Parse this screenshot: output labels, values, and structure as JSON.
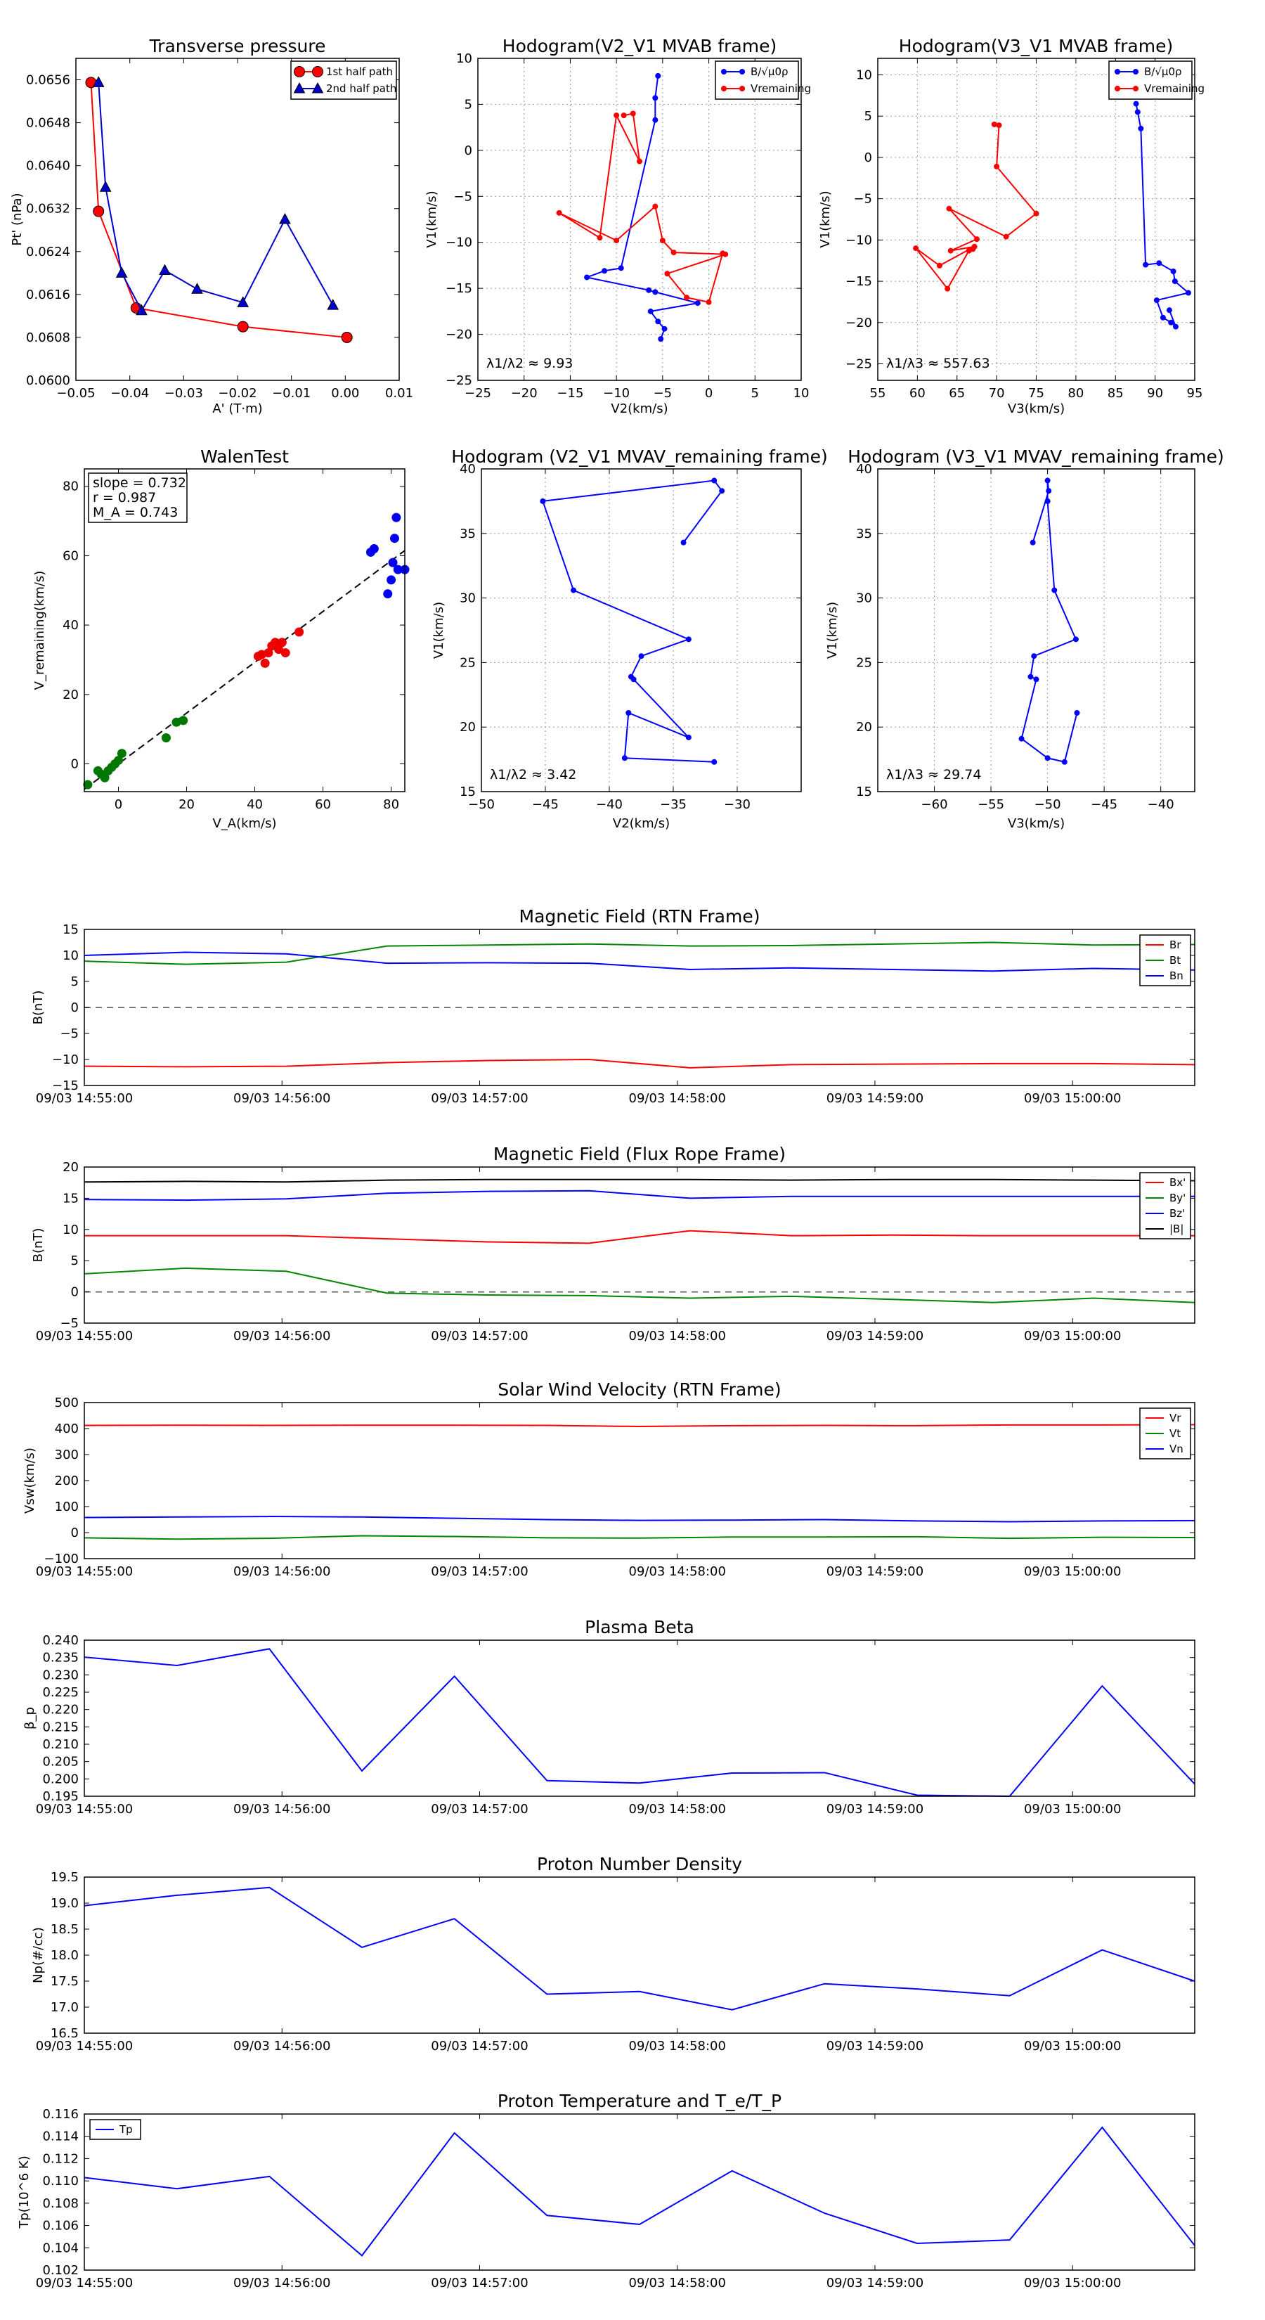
{
  "chart_data": [
    {
      "id": "pt",
      "type": "line",
      "title": "Transverse pressure",
      "xlabel": "A' (T·m)",
      "ylabel": "Pt' (nPa)",
      "xlim": [
        -0.05,
        0.01
      ],
      "ylim": [
        0.06,
        0.066
      ],
      "xticks": [
        -0.05,
        -0.04,
        -0.03,
        -0.02,
        -0.01,
        0.0,
        0.01
      ],
      "xtick_labels": [
        "−0.05",
        "−0.04",
        "−0.03",
        "−0.02",
        "−0.01",
        "0.00",
        "0.01"
      ],
      "yticks": [
        0.06,
        0.0608,
        0.0616,
        0.0624,
        0.0632,
        0.064,
        0.0648,
        0.0656
      ],
      "ytick_labels": [
        "0.0600",
        "0.0608",
        "0.0616",
        "0.0624",
        "0.0632",
        "0.0640",
        "0.0648",
        "0.0656"
      ],
      "grid": false,
      "legend_position": "top-right",
      "series": [
        {
          "name": "1st half path",
          "color": "#ff0000",
          "marker": "circle",
          "x": [
            -0.0472,
            -0.0458,
            -0.0388,
            -0.019,
            0.0003
          ],
          "y": [
            0.06555,
            0.06315,
            0.06135,
            0.061,
            0.0608
          ]
        },
        {
          "name": "2nd half path",
          "color": "#0000cc",
          "marker": "triangle",
          "x": [
            -0.0458,
            -0.0445,
            -0.0415,
            -0.0378,
            -0.0335,
            -0.0275,
            -0.019,
            -0.0112,
            -0.0023
          ],
          "y": [
            0.06555,
            0.0636,
            0.062,
            0.0613,
            0.06205,
            0.0617,
            0.06145,
            0.063,
            0.0614
          ]
        }
      ]
    },
    {
      "id": "h21",
      "type": "line",
      "title": "Hodogram(V2_V1 MVAB frame)",
      "xlabel": "V2(km/s)",
      "ylabel": "V1(km/s)",
      "xlim": [
        -25,
        10
      ],
      "ylim": [
        -25,
        10
      ],
      "xticks": [
        -25,
        -20,
        -15,
        -10,
        -5,
        0,
        5,
        10
      ],
      "xtick_labels": [
        "−25",
        "−20",
        "−15",
        "−10",
        "−5",
        "0",
        "5",
        "10"
      ],
      "yticks": [
        -25,
        -20,
        -15,
        -10,
        -5,
        0,
        5,
        10
      ],
      "ytick_labels": [
        "−25",
        "−20",
        "−15",
        "−10",
        "−5",
        "0",
        "5",
        "10"
      ],
      "grid": true,
      "legend_position": "top-right",
      "annotation": "λ1/λ2 ≈ 9.93",
      "series": [
        {
          "name": "B/√μ0ρ",
          "color": "#0000ff",
          "marker": "dot",
          "x": [
            -5.5,
            -5.8,
            -5.8,
            -9.5,
            -11.3,
            -13.2,
            -6.5,
            -5.8,
            -1.2,
            -6.3,
            -5.5,
            -4.8,
            -5.2
          ],
          "y": [
            8.1,
            5.7,
            3.3,
            -12.8,
            -13.1,
            -13.8,
            -15.2,
            -15.4,
            -16.6,
            -17.5,
            -18.6,
            -19.4,
            -20.5
          ]
        },
        {
          "name": "Vremaining",
          "color": "#ff0000",
          "marker": "dot",
          "x": [
            -9.2,
            -8.2,
            -7.5,
            -10.0,
            -11.8,
            -16.2,
            -10.0,
            -5.8,
            -5.0,
            -3.8,
            1.8,
            -4.5,
            -2.4,
            0.0,
            1.5
          ],
          "y": [
            3.8,
            4.0,
            -1.2,
            3.8,
            -9.5,
            -6.8,
            -9.8,
            -6.1,
            -9.8,
            -11.1,
            -11.3,
            -13.4,
            -16.0,
            -16.5,
            -11.2
          ]
        }
      ]
    },
    {
      "id": "h31",
      "type": "line",
      "title": "Hodogram(V3_V1 MVAB frame)",
      "xlabel": "V3(km/s)",
      "ylabel": "V1(km/s)",
      "xlim": [
        55,
        95
      ],
      "ylim": [
        -27,
        12
      ],
      "xticks": [
        55,
        60,
        65,
        70,
        75,
        80,
        85,
        90,
        95
      ],
      "xtick_labels": [
        "55",
        "60",
        "65",
        "70",
        "75",
        "80",
        "85",
        "90",
        "95"
      ],
      "yticks": [
        -25,
        -20,
        -15,
        -10,
        -5,
        0,
        5,
        10
      ],
      "ytick_labels": [
        "−25",
        "−20",
        "−15",
        "−10",
        "−5",
        "0",
        "5",
        "10"
      ],
      "grid": true,
      "legend_position": "top-right",
      "annotation": "λ1/λ3 ≈ 557.63",
      "series": [
        {
          "name": "B/√μ0ρ",
          "color": "#0000ff",
          "marker": "dot",
          "x": [
            87.6,
            87.8,
            88.2,
            88.8,
            90.5,
            92.3,
            92.5,
            94.2,
            90.2,
            91.0,
            92.0,
            92.6,
            91.8
          ],
          "y": [
            6.5,
            5.5,
            3.5,
            -13.0,
            -12.8,
            -13.8,
            -15.0,
            -16.4,
            -17.3,
            -19.4,
            -20.0,
            -20.5,
            -18.5
          ]
        },
        {
          "name": "Vremaining",
          "color": "#ff0000",
          "marker": "dot",
          "x": [
            69.7,
            70.3,
            70.0,
            75.0,
            71.2,
            64.0,
            67.5,
            64.2,
            67.2,
            62.8,
            59.8,
            63.8,
            66.5,
            67.0
          ],
          "y": [
            4.0,
            3.9,
            -1.1,
            -6.8,
            -9.6,
            -6.2,
            -9.9,
            -11.3,
            -10.8,
            -13.1,
            -11.0,
            -15.9,
            -11.3,
            -11.1
          ]
        }
      ]
    },
    {
      "id": "walen",
      "type": "scatter",
      "title": "WalenTest",
      "xlabel": "V_A(km/s)",
      "ylabel": "V_remaining(km/s)",
      "xlim": [
        -10,
        84
      ],
      "ylim": [
        -8,
        85
      ],
      "xticks": [
        0,
        20,
        40,
        60,
        80
      ],
      "xtick_labels": [
        "0",
        "20",
        "40",
        "60",
        "80"
      ],
      "yticks": [
        0,
        20,
        40,
        60,
        80
      ],
      "ytick_labels": [
        "0",
        "20",
        "40",
        "60",
        "80"
      ],
      "grid": false,
      "stats": [
        "slope = 0.732",
        "r = 0.987",
        "M_A = 0.743"
      ],
      "fit_line": {
        "slope": 0.732,
        "intercept": 0
      },
      "series": [
        {
          "name": "green",
          "color": "#007700",
          "x": [
            -9,
            -6,
            -5,
            -4,
            -3,
            -2,
            -1,
            0,
            1,
            14,
            17,
            19
          ],
          "y": [
            -6,
            -2,
            -3,
            -4,
            -2,
            -1,
            0,
            1,
            3,
            7.5,
            12,
            12.5
          ]
        },
        {
          "name": "red",
          "color": "#ee0000",
          "x": [
            41,
            42,
            43,
            44,
            45,
            46,
            47,
            48,
            49,
            53
          ],
          "y": [
            31,
            31.5,
            29,
            32,
            34,
            35,
            33,
            35,
            32,
            38
          ]
        },
        {
          "name": "blue",
          "color": "#0000ee",
          "x": [
            74,
            75,
            79,
            80,
            80.5,
            81,
            81.5,
            82,
            84
          ],
          "y": [
            61,
            62,
            49,
            53,
            58,
            65,
            71,
            56,
            56
          ]
        }
      ]
    },
    {
      "id": "h21r",
      "type": "line",
      "title": "Hodogram (V2_V1 MVAV_remaining frame)",
      "xlabel": "V2(km/s)",
      "ylabel": "V1(km/s)",
      "xlim": [
        -50,
        -25
      ],
      "ylim": [
        15,
        40
      ],
      "xticks": [
        -50,
        -45,
        -40,
        -35,
        -30
      ],
      "xtick_labels": [
        "−50",
        "−45",
        "−40",
        "−35",
        "−30"
      ],
      "yticks": [
        15,
        20,
        25,
        30,
        35,
        40
      ],
      "ytick_labels": [
        "15",
        "20",
        "25",
        "30",
        "35",
        "40"
      ],
      "grid": true,
      "annotation": "λ1/λ2 ≈ 3.42",
      "series": [
        {
          "name": "B",
          "color": "#0000ff",
          "marker": "dot",
          "x": [
            -34.2,
            -31.2,
            -31.8,
            -45.2,
            -42.8,
            -33.8,
            -37.5,
            -38.3,
            -38.1,
            -33.8,
            -38.5,
            -38.8,
            -31.8
          ],
          "y": [
            34.3,
            38.3,
            39.1,
            37.5,
            30.6,
            26.8,
            25.5,
            23.9,
            23.7,
            19.2,
            21.1,
            17.6,
            17.3
          ]
        }
      ]
    },
    {
      "id": "h31r",
      "type": "line",
      "title": "Hodogram (V3_V1 MVAV_remaining frame)",
      "xlabel": "V3(km/s)",
      "ylabel": "V1(km/s)",
      "xlim": [
        -65,
        -37
      ],
      "ylim": [
        15,
        40
      ],
      "xticks": [
        -60,
        -55,
        -50,
        -45,
        -40
      ],
      "xtick_labels": [
        "−60",
        "−55",
        "−50",
        "−45",
        "−40"
      ],
      "yticks": [
        15,
        20,
        25,
        30,
        35,
        40
      ],
      "ytick_labels": [
        "15",
        "20",
        "25",
        "30",
        "35",
        "40"
      ],
      "grid": true,
      "annotation": "λ1/λ3 ≈ 29.74",
      "series": [
        {
          "name": "B",
          "color": "#0000ff",
          "marker": "dot",
          "x": [
            -51.3,
            -49.9,
            -50.0,
            -50.0,
            -49.4,
            -47.5,
            -51.2,
            -51.5,
            -51.0,
            -52.3,
            -50.0,
            -48.5,
            -47.4
          ],
          "y": [
            34.3,
            38.3,
            39.1,
            37.5,
            30.6,
            26.8,
            25.5,
            23.9,
            23.7,
            19.1,
            17.6,
            17.3,
            21.1
          ]
        }
      ]
    },
    {
      "id": "brtn",
      "type": "line",
      "title": "Magnetic Field (RTN Frame)",
      "ylabel": "B(nT)",
      "ylim": [
        -15,
        15
      ],
      "yticks": [
        -15,
        -10,
        -5,
        0,
        5,
        10,
        15
      ],
      "ytick_labels": [
        "−15",
        "−10",
        "−5",
        "0",
        "5",
        "10",
        "15"
      ],
      "dashed_zero": true,
      "legend_position": "top-right",
      "series": [
        {
          "name": "Br",
          "color": "#ff0000",
          "values": [
            -11.3,
            -11.4,
            -11.3,
            -10.6,
            -10.2,
            -10.0,
            -11.6,
            -11.0,
            -10.9,
            -10.8,
            -10.8,
            -11.0
          ]
        },
        {
          "name": "Bt",
          "color": "#008800",
          "values": [
            8.9,
            8.3,
            8.7,
            11.8,
            12.0,
            12.2,
            11.8,
            11.9,
            12.2,
            12.5,
            12.0,
            12.1
          ]
        },
        {
          "name": "Bn",
          "color": "#0000ff",
          "values": [
            10.0,
            10.6,
            10.3,
            8.5,
            8.6,
            8.5,
            7.3,
            7.6,
            7.3,
            7.0,
            7.5,
            7.2
          ]
        }
      ]
    },
    {
      "id": "bfr",
      "type": "line",
      "title": "Magnetic Field (Flux Rope Frame)",
      "ylabel": "B(nT)",
      "ylim": [
        -5,
        20
      ],
      "yticks": [
        -5,
        0,
        5,
        10,
        15,
        20
      ],
      "ytick_labels": [
        "−5",
        "0",
        "5",
        "10",
        "15",
        "20"
      ],
      "dashed_zero": true,
      "legend_position": "top-right",
      "series": [
        {
          "name": "Bx'",
          "color": "#ff0000",
          "values": [
            9.0,
            9.0,
            9.0,
            8.5,
            8.0,
            7.8,
            9.8,
            9.0,
            9.1,
            9.0,
            9.0,
            9.0
          ]
        },
        {
          "name": "By'",
          "color": "#008800",
          "values": [
            2.9,
            3.8,
            3.3,
            -0.2,
            -0.5,
            -0.6,
            -1.0,
            -0.7,
            -1.2,
            -1.7,
            -1.0,
            -1.7
          ]
        },
        {
          "name": "Bz'",
          "color": "#0000ff",
          "values": [
            14.8,
            14.7,
            14.9,
            15.8,
            16.1,
            16.2,
            15.0,
            15.3,
            15.3,
            15.3,
            15.3,
            15.3
          ]
        },
        {
          "name": "|B|",
          "color": "#000000",
          "values": [
            17.6,
            17.7,
            17.6,
            17.9,
            18.0,
            18.0,
            18.0,
            17.9,
            18.0,
            18.0,
            17.9,
            17.8
          ]
        }
      ]
    },
    {
      "id": "vsw",
      "type": "line",
      "title": "Solar Wind Velocity (RTN Frame)",
      "ylabel": "Vsw(km/s)",
      "ylim": [
        -100,
        500
      ],
      "yticks": [
        -100,
        0,
        100,
        200,
        300,
        400,
        500
      ],
      "ytick_labels": [
        "−100",
        "0",
        "100",
        "200",
        "300",
        "400",
        "500"
      ],
      "dashed_zero": false,
      "legend_position": "top-right",
      "series": [
        {
          "name": "Vr",
          "color": "#ff0000",
          "values": [
            412,
            413,
            412,
            413,
            413,
            412,
            408,
            411,
            412,
            411,
            414,
            414,
            415
          ]
        },
        {
          "name": "Vt",
          "color": "#008800",
          "values": [
            -20,
            -25,
            -22,
            -12,
            -15,
            -20,
            -21,
            -17,
            -17,
            -16,
            -22,
            -18,
            -19
          ]
        },
        {
          "name": "Vn",
          "color": "#0000ff",
          "values": [
            58,
            60,
            62,
            60,
            55,
            50,
            47,
            48,
            50,
            45,
            42,
            45,
            46
          ]
        }
      ]
    },
    {
      "id": "beta",
      "type": "line",
      "title": "Plasma Beta",
      "ylabel": "β_p",
      "ylim": [
        0.195,
        0.24
      ],
      "yticks": [
        0.195,
        0.2,
        0.205,
        0.21,
        0.215,
        0.22,
        0.225,
        0.23,
        0.235,
        0.24
      ],
      "ytick_labels": [
        "0.195",
        "0.200",
        "0.205",
        "0.210",
        "0.215",
        "0.220",
        "0.225",
        "0.230",
        "0.235",
        "0.240"
      ],
      "series": [
        {
          "name": "beta",
          "color": "#0000ff",
          "values": [
            0.2351,
            0.2327,
            0.2375,
            0.2023,
            0.2296,
            0.1995,
            0.1988,
            0.2017,
            0.2018,
            0.1953,
            0.195,
            0.2268,
            0.1985
          ]
        }
      ]
    },
    {
      "id": "np",
      "type": "line",
      "title": "Proton Number Density",
      "ylabel": "Np(#/cc)",
      "ylim": [
        16.5,
        19.5
      ],
      "yticks": [
        16.5,
        17.0,
        17.5,
        18.0,
        18.5,
        19.0,
        19.5
      ],
      "ytick_labels": [
        "16.5",
        "17.0",
        "17.5",
        "18.0",
        "18.5",
        "19.0",
        "19.5"
      ],
      "series": [
        {
          "name": "Np",
          "color": "#0000ff",
          "values": [
            18.95,
            19.15,
            19.3,
            18.15,
            18.7,
            17.25,
            17.3,
            16.95,
            17.45,
            17.35,
            17.22,
            18.1,
            17.5
          ]
        }
      ]
    },
    {
      "id": "tp",
      "type": "line",
      "title": "Proton Temperature and T_e/T_P",
      "ylabel": "Tp(10^6 K)",
      "ylim": [
        0.102,
        0.116
      ],
      "yticks": [
        0.102,
        0.104,
        0.106,
        0.108,
        0.11,
        0.112,
        0.114,
        0.116
      ],
      "ytick_labels": [
        "0.102",
        "0.104",
        "0.106",
        "0.108",
        "0.110",
        "0.112",
        "0.114",
        "0.116"
      ],
      "legend_position": "top-left",
      "series": [
        {
          "name": "Tp",
          "color": "#0000ff",
          "values": [
            0.1103,
            0.1093,
            0.1104,
            0.1033,
            0.1143,
            0.1069,
            0.1061,
            0.1109,
            0.1071,
            0.1044,
            0.1047,
            0.1148,
            0.1042
          ]
        }
      ]
    }
  ],
  "time_axis": {
    "tick_labels": [
      "09/03 14:55:00",
      "09/03 14:56:00",
      "09/03 14:57:00",
      "09/03 14:58:00",
      "09/03 14:59:00",
      "09/03 15:00:00"
    ]
  }
}
